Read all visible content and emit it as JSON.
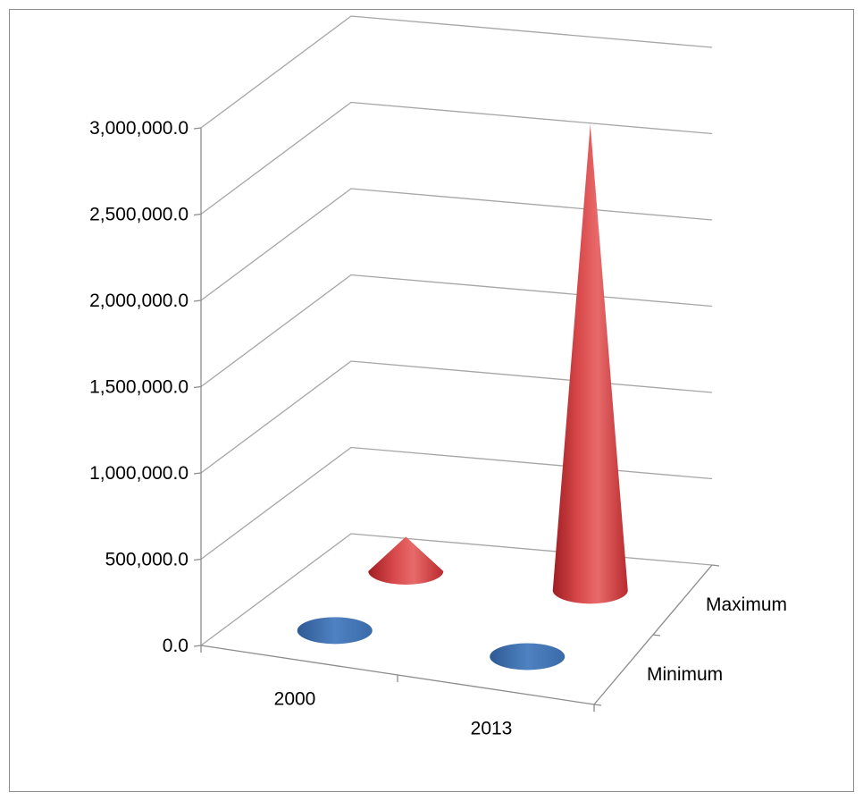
{
  "chart_data": {
    "type": "3d-cone",
    "title": "",
    "xlabel": "",
    "ylabel": "",
    "categories": [
      "2000",
      "2013"
    ],
    "series": [
      {
        "name": "Minimum",
        "values": [
          0,
          0
        ],
        "color": "#4a78b4"
      },
      {
        "name": "Maximum",
        "values": [
          200000,
          2700000
        ],
        "color": "#c8393c"
      }
    ],
    "y_ticks": [
      "0.0",
      "500,000.0",
      "1,000,000.0",
      "1,500,000.0",
      "2,000,000.0",
      "2,500,000.0",
      "3,000,000.0"
    ],
    "ylim": [
      0,
      3000000
    ],
    "depth_labels": [
      "Minimum",
      "Maximum"
    ],
    "grid": true
  }
}
